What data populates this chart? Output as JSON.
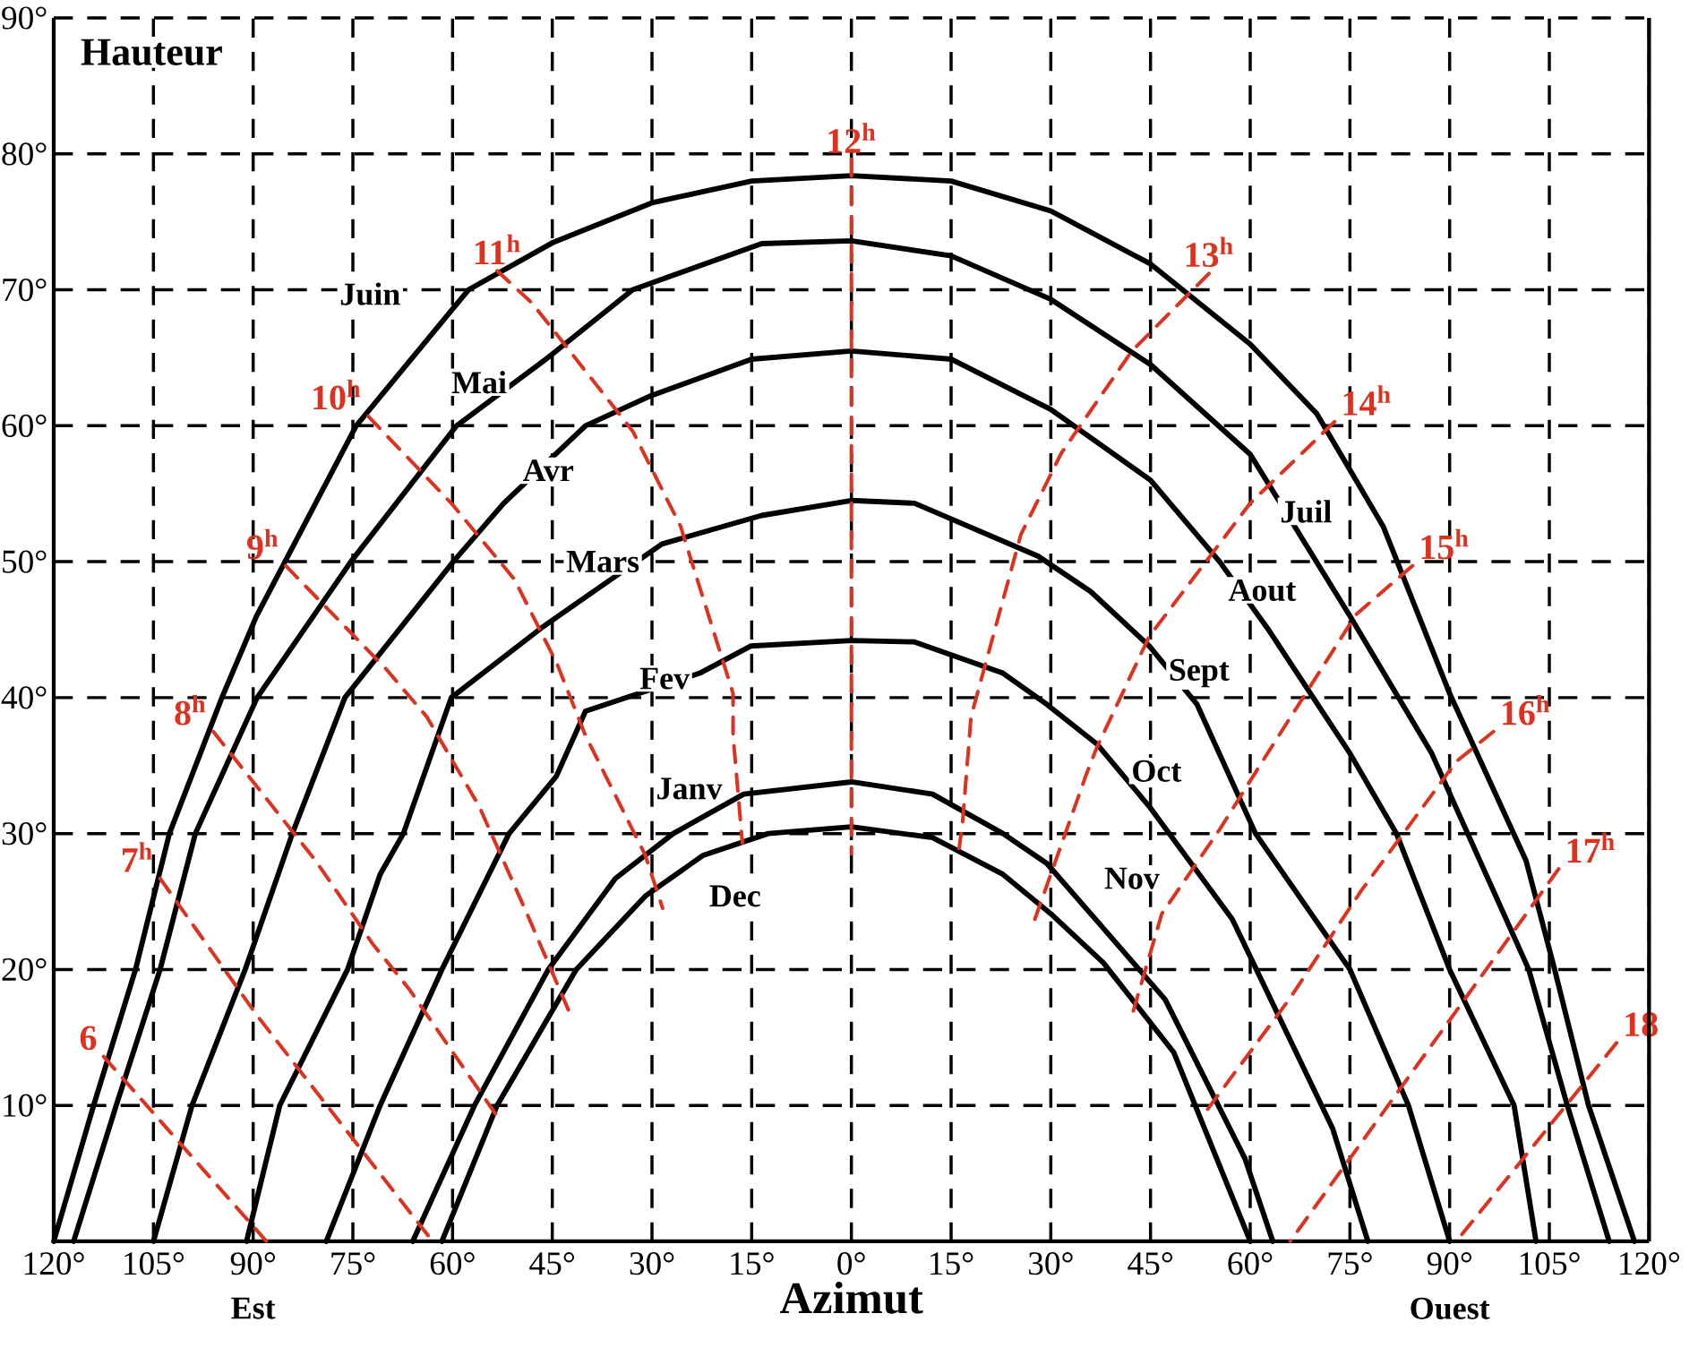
{
  "chart_data": {
    "type": "line",
    "ylabel": "Hauteur",
    "xlabel": "Azimut",
    "xlim": [
      -120,
      120
    ],
    "ylim": [
      0,
      90
    ],
    "xticks": [
      {
        "value": -120,
        "label": "120°"
      },
      {
        "value": -105,
        "label": "105°"
      },
      {
        "value": -90,
        "label": "90°"
      },
      {
        "value": -75,
        "label": "75°"
      },
      {
        "value": -60,
        "label": "60°"
      },
      {
        "value": -45,
        "label": "45°"
      },
      {
        "value": -30,
        "label": "30°"
      },
      {
        "value": -15,
        "label": "15°"
      },
      {
        "value": 0,
        "label": "0°"
      },
      {
        "value": 15,
        "label": "15°"
      },
      {
        "value": 30,
        "label": "30°"
      },
      {
        "value": 45,
        "label": "45°"
      },
      {
        "value": 60,
        "label": "60°"
      },
      {
        "value": 75,
        "label": "75°"
      },
      {
        "value": 90,
        "label": "90°"
      },
      {
        "value": 105,
        "label": "105°"
      },
      {
        "value": 120,
        "label": "120°"
      }
    ],
    "yticks": [
      {
        "value": 10,
        "label": "10°"
      },
      {
        "value": 20,
        "label": "20°"
      },
      {
        "value": 30,
        "label": "30°"
      },
      {
        "value": 40,
        "label": "40°"
      },
      {
        "value": 50,
        "label": "50°"
      },
      {
        "value": 60,
        "label": "60°"
      },
      {
        "value": 70,
        "label": "70°"
      },
      {
        "value": 80,
        "label": "80°"
      },
      {
        "value": 90,
        "label": "90°"
      }
    ],
    "grid": true,
    "line_style": "solid",
    "series": [
      {
        "color": "#000000",
        "x": [
          -120,
          -114,
          -107.7,
          -102.6,
          -94.7,
          -89.5,
          -74.5,
          -57.6,
          -44.8,
          -30,
          -15,
          0,
          15,
          30,
          45,
          60,
          70,
          80,
          90,
          101.5,
          105.8,
          110.9,
          117.8
        ],
        "values": [
          0,
          10,
          20,
          30,
          40,
          46,
          60,
          70,
          73.5,
          76.4,
          78,
          78.4,
          78,
          75.8,
          71.9,
          66,
          60.9,
          52.6,
          40.3,
          28,
          20,
          10,
          0
        ]
      },
      {
        "color": "#000000",
        "x": [
          -117,
          -110.6,
          -104,
          -98.7,
          -89.4,
          -75.3,
          -59.4,
          -46.2,
          -32.9,
          -13.5,
          0,
          15,
          30,
          45,
          60,
          68.7,
          75,
          87.3,
          101.9,
          107.7,
          114
        ],
        "values": [
          0,
          10,
          20,
          30,
          40,
          50,
          60,
          64.8,
          70,
          73.4,
          73.6,
          72.5,
          69.3,
          64.5,
          57.9,
          51,
          46,
          35.9,
          20,
          10,
          0
        ]
      },
      {
        "color": "#000000",
        "x": [
          -105,
          -99.2,
          -91.2,
          -84.1,
          -76.2,
          -59.9,
          -52.3,
          -40,
          -30.2,
          -15,
          0,
          15,
          30,
          45,
          55.4,
          62.6,
          75,
          82,
          90,
          99.7,
          103
        ],
        "values": [
          0,
          10,
          20,
          30,
          40,
          50,
          54.3,
          60,
          62.2,
          64.9,
          65.5,
          64.9,
          61.2,
          56,
          50,
          45.1,
          35.9,
          30,
          20,
          10,
          0
        ]
      },
      {
        "color": "#000000",
        "x": [
          -91,
          -86,
          -75.8,
          -70.9,
          -67.4,
          -60.2,
          -46.7,
          -40,
          -28.5,
          -13.5,
          0,
          9.5,
          28.1,
          36,
          44.8,
          52,
          60.8,
          75,
          83.8,
          90
        ],
        "values": [
          0,
          10,
          20,
          27,
          30,
          40,
          45.1,
          47.4,
          51.3,
          53.4,
          54.5,
          54.3,
          50.4,
          47.8,
          43.8,
          39.5,
          30,
          20,
          10,
          0
        ]
      },
      {
        "color": "#000000",
        "x": [
          -79,
          -70.9,
          -61.6,
          -51.5,
          -44.4,
          -40,
          -22.8,
          -15.1,
          0,
          9.5,
          22.8,
          29.4,
          36.9,
          44.8,
          57.3,
          72.4,
          77.7
        ],
        "values": [
          0,
          10,
          20,
          30,
          34.2,
          39,
          41.8,
          43.8,
          44.2,
          44.1,
          41.8,
          39.5,
          36.6,
          32,
          23.7,
          8.3,
          0
        ]
      },
      {
        "color": "#000000",
        "x": [
          -66,
          -56.7,
          -45.6,
          -35.5,
          -26.8,
          -16.2,
          0,
          12.2,
          22.8,
          29.4,
          36,
          47.2,
          59.2,
          63.4
        ],
        "values": [
          0,
          10,
          20,
          26.7,
          30,
          32.9,
          33.8,
          32.9,
          30,
          27.8,
          24.1,
          17.8,
          6.1,
          0
        ]
      },
      {
        "color": "#000000",
        "x": [
          -61.6,
          -53.3,
          -41.4,
          -31,
          -22.3,
          -12.5,
          0,
          12.2,
          22.8,
          30,
          37.9,
          48.5,
          60
        ],
        "values": [
          0,
          10,
          20,
          25.4,
          28.4,
          30,
          30.5,
          29.7,
          27,
          24.1,
          20.5,
          13.9,
          0
        ]
      },
      {
        "name": "6",
        "color": "#e0301e",
        "line_style": "dashed",
        "x": [
          -112.5,
          -88
        ],
        "values": [
          13.6,
          0
        ]
      },
      {
        "name": "7$^{h}$",
        "color": "#e0301e",
        "line_style": "dashed",
        "x": [
          -104,
          -89.4,
          -63
        ],
        "values": [
          26.7,
          16.6,
          0
        ]
      },
      {
        "name": "8$^{h}$",
        "color": "#e0301e",
        "line_style": "dashed",
        "x": [
          -96,
          -80.6,
          -71.9,
          -66.6,
          -53.3
        ],
        "values": [
          37.5,
          28,
          21.8,
          18.6,
          9.2
        ]
      },
      {
        "name": "9$^{h}$",
        "color": "#e0301e",
        "line_style": "dashed",
        "x": [
          -85.1,
          -70,
          -63.9,
          -56,
          -48.8,
          -42.2
        ],
        "values": [
          49.7,
          42.1,
          38.6,
          32,
          24.1,
          16.6
        ]
      },
      {
        "name": "10$^{h}$",
        "color": "#e0301e",
        "line_style": "dashed",
        "x": [
          -72.7,
          -60.2,
          -50.7,
          -44.3,
          -40,
          -31,
          -28.4
        ],
        "values": [
          60.7,
          54.3,
          48.7,
          42.5,
          37.2,
          28.4,
          24.5
        ]
      },
      {
        "name": "11$^{h}$",
        "color": "#e0301e",
        "line_style": "dashed",
        "x": [
          -53.3,
          -48,
          -32.9,
          -25.7,
          -17.8,
          -17.8,
          -16.4
        ],
        "values": [
          71.4,
          69,
          59.6,
          52.6,
          40.3,
          37.2,
          29.3
        ]
      },
      {
        "name": "12$^{h}$",
        "color": "#e0301e",
        "line_style": "dashed",
        "x": [
          0,
          0
        ],
        "values": [
          79.6,
          28.5
        ]
      },
      {
        "name": "13$^{h}$",
        "color": "#e0301e",
        "line_style": "dashed",
        "x": [
          53.8,
          42.2,
          31.6,
          25.5,
          18,
          16.7,
          16.2
        ],
        "values": [
          71.2,
          65.5,
          58,
          52,
          38.6,
          30.7,
          28.9
        ]
      },
      {
        "name": "14$^{h}$",
        "color": "#e0301e",
        "line_style": "dashed",
        "x": [
          72.7,
          60,
          44.8,
          36.9,
          35.3,
          27.6
        ],
        "values": [
          60.3,
          54.3,
          44.5,
          36.3,
          34.3,
          23.7
        ]
      },
      {
        "name": "15$^{h}$",
        "color": "#e0301e",
        "line_style": "dashed",
        "x": [
          84.4,
          75.9,
          62.6,
          55.4,
          46.7,
          42.2
        ],
        "values": [
          49.7,
          46.1,
          35.9,
          30.3,
          24.1,
          16.6
        ]
      },
      {
        "name": "16$^{h}$",
        "color": "#e0301e",
        "line_style": "dashed",
        "x": [
          96.6,
          91,
          76.7,
          66,
          52.8
        ],
        "values": [
          37.5,
          35.3,
          25.8,
          17.9,
          9.2
        ]
      },
      {
        "name": "17$^{h}$",
        "color": "#e0301e",
        "line_style": "dashed",
        "x": [
          106.4,
          66
        ],
        "values": [
          27.4,
          0
        ]
      },
      {
        "name": "18",
        "color": "#e0301e",
        "line_style": "dashed",
        "x": [
          115.1,
          91
        ],
        "values": [
          14.6,
          0
        ]
      }
    ],
    "annotations": [
      {
        "text": "Juin",
        "x": -72.4,
        "y": 69.7
      },
      {
        "text": "Mai",
        "x": -56,
        "y": 63.2
      },
      {
        "text": "Avr",
        "x": -45.6,
        "y": 56.7
      },
      {
        "text": "Mars",
        "x": -37.4,
        "y": 50
      },
      {
        "text": "Fev",
        "x": -28.1,
        "y": 41.4
      },
      {
        "text": "Janv",
        "x": -24.4,
        "y": 33.3
      },
      {
        "text": "Dec",
        "x": -17.5,
        "y": 25.4
      },
      {
        "text": "Juil",
        "x": 68.4,
        "y": 53.7
      },
      {
        "text": "Aout",
        "x": 61.8,
        "y": 47.9
      },
      {
        "text": "Sept",
        "x": 52.3,
        "y": 41.8
      },
      {
        "text": "Oct",
        "x": 45.9,
        "y": 34.6
      },
      {
        "text": "Nov",
        "x": 42.2,
        "y": 26.7
      },
      "Est",
      "Ouest"
    ]
  }
}
